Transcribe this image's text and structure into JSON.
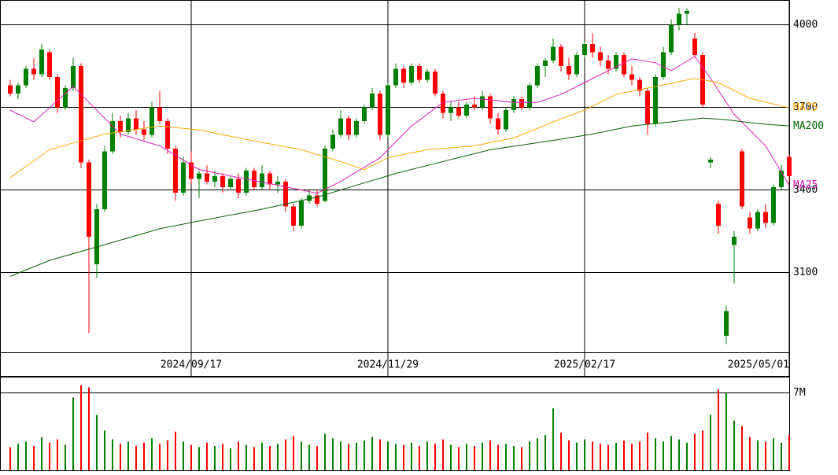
{
  "chart_data": {
    "type": "candlestick",
    "up_color": "#008000",
    "down_color": "#ff0000",
    "categories": [
      null,
      null,
      null,
      null,
      null,
      null,
      null,
      null,
      null,
      null,
      null,
      null,
      null,
      null,
      null,
      null,
      null,
      null,
      null,
      null,
      null,
      null,
      null,
      "2024/09/17",
      null,
      null,
      null,
      null,
      null,
      null,
      null,
      null,
      null,
      null,
      null,
      null,
      null,
      null,
      null,
      null,
      null,
      null,
      null,
      null,
      null,
      null,
      null,
      null,
      "2024/11/29",
      null,
      null,
      null,
      null,
      null,
      null,
      null,
      null,
      null,
      null,
      null,
      null,
      null,
      null,
      null,
      null,
      null,
      null,
      null,
      null,
      null,
      null,
      null,
      null,
      "2025/02/17",
      null,
      null,
      null,
      null,
      null,
      null,
      null,
      null,
      null,
      null,
      null,
      null,
      null,
      null,
      null,
      null,
      null,
      null,
      null,
      null,
      null,
      null,
      null,
      null,
      null,
      "2025/05/01"
    ],
    "ohlc": [
      [
        3780,
        3800,
        3740,
        3750
      ],
      [
        3750,
        3790,
        3730,
        3780
      ],
      [
        3780,
        3850,
        3770,
        3840
      ],
      [
        3840,
        3880,
        3800,
        3820
      ],
      [
        3820,
        3930,
        3810,
        3910
      ],
      [
        3900,
        3910,
        3800,
        3810
      ],
      [
        3810,
        3820,
        3680,
        3700
      ],
      [
        3700,
        3780,
        3690,
        3770
      ],
      [
        3770,
        3880,
        3760,
        3850
      ],
      [
        3850,
        3860,
        3480,
        3500
      ],
      [
        3500,
        3510,
        2880,
        3230
      ],
      [
        3130,
        3350,
        3080,
        3330
      ],
      [
        3330,
        3560,
        3320,
        3540
      ],
      [
        3540,
        3680,
        3530,
        3650
      ],
      [
        3650,
        3670,
        3590,
        3610
      ],
      [
        3610,
        3680,
        3600,
        3660
      ],
      [
        3660,
        3690,
        3600,
        3620
      ],
      [
        3620,
        3650,
        3580,
        3600
      ],
      [
        3600,
        3720,
        3590,
        3700
      ],
      [
        3700,
        3760,
        3640,
        3650
      ],
      [
        3650,
        3660,
        3530,
        3550
      ],
      [
        3550,
        3560,
        3360,
        3390
      ],
      [
        3390,
        3520,
        3380,
        3500
      ],
      [
        3500,
        3540,
        3420,
        3440
      ],
      [
        3440,
        3470,
        3370,
        3460
      ],
      [
        3460,
        3490,
        3420,
        3430
      ],
      [
        3430,
        3470,
        3410,
        3450
      ],
      [
        3450,
        3460,
        3390,
        3410
      ],
      [
        3410,
        3450,
        3400,
        3440
      ],
      [
        3440,
        3460,
        3370,
        3390
      ],
      [
        3390,
        3480,
        3380,
        3470
      ],
      [
        3470,
        3480,
        3400,
        3410
      ],
      [
        3410,
        3490,
        3400,
        3460
      ],
      [
        3460,
        3470,
        3400,
        3420
      ],
      [
        3420,
        3450,
        3390,
        3430
      ],
      [
        3430,
        3440,
        3320,
        3340
      ],
      [
        3340,
        3350,
        3250,
        3270
      ],
      [
        3270,
        3370,
        3260,
        3360
      ],
      [
        3360,
        3400,
        3350,
        3380
      ],
      [
        3380,
        3400,
        3340,
        3350
      ],
      [
        3360,
        3560,
        3355,
        3550
      ],
      [
        3550,
        3620,
        3540,
        3600
      ],
      [
        3600,
        3690,
        3590,
        3660
      ],
      [
        3660,
        3670,
        3580,
        3600
      ],
      [
        3600,
        3660,
        3590,
        3650
      ],
      [
        3650,
        3710,
        3640,
        3700
      ],
      [
        3700,
        3770,
        3690,
        3750
      ],
      [
        3750,
        3760,
        3580,
        3600
      ],
      [
        3600,
        3790,
        3590,
        3780
      ],
      [
        3780,
        3860,
        3770,
        3840
      ],
      [
        3840,
        3850,
        3770,
        3790
      ],
      [
        3790,
        3860,
        3780,
        3850
      ],
      [
        3850,
        3860,
        3790,
        3800
      ],
      [
        3800,
        3840,
        3790,
        3830
      ],
      [
        3830,
        3840,
        3740,
        3750
      ],
      [
        3750,
        3760,
        3660,
        3680
      ],
      [
        3680,
        3720,
        3650,
        3700
      ],
      [
        3700,
        3720,
        3660,
        3670
      ],
      [
        3670,
        3720,
        3660,
        3710
      ],
      [
        3710,
        3740,
        3690,
        3700
      ],
      [
        3700,
        3760,
        3690,
        3740
      ],
      [
        3740,
        3750,
        3640,
        3660
      ],
      [
        3660,
        3680,
        3600,
        3620
      ],
      [
        3620,
        3700,
        3610,
        3690
      ],
      [
        3690,
        3740,
        3680,
        3730
      ],
      [
        3730,
        3740,
        3690,
        3700
      ],
      [
        3700,
        3790,
        3690,
        3780
      ],
      [
        3780,
        3860,
        3770,
        3850
      ],
      [
        3850,
        3880,
        3810,
        3870
      ],
      [
        3870,
        3950,
        3860,
        3920
      ],
      [
        3920,
        3930,
        3830,
        3850
      ],
      [
        3850,
        3880,
        3800,
        3820
      ],
      [
        3820,
        3900,
        3810,
        3890
      ],
      [
        3890,
        3940,
        3880,
        3930
      ],
      [
        3930,
        3970,
        3880,
        3900
      ],
      [
        3900,
        3920,
        3850,
        3870
      ],
      [
        3870,
        3890,
        3820,
        3840
      ],
      [
        3840,
        3900,
        3830,
        3890
      ],
      [
        3890,
        3900,
        3810,
        3820
      ],
      [
        3820,
        3850,
        3780,
        3800
      ],
      [
        3800,
        3810,
        3740,
        3760
      ],
      [
        3760,
        3770,
        3600,
        3640
      ],
      [
        3640,
        3820,
        3630,
        3810
      ],
      [
        3810,
        3920,
        3800,
        3900
      ],
      [
        3900,
        4020,
        3890,
        4000
      ],
      [
        4000,
        4060,
        3980,
        4040
      ],
      [
        4040,
        4060,
        4000,
        4050
      ],
      [
        3950,
        3970,
        3880,
        3890
      ],
      [
        3890,
        3900,
        3700,
        3710
      ],
      [
        3500,
        3520,
        3480,
        3510
      ],
      [
        3350,
        3360,
        3240,
        3270
      ],
      [
        2870,
        2980,
        2840,
        2960
      ],
      [
        3200,
        3250,
        3060,
        3230
      ],
      [
        3540,
        3550,
        3330,
        3340
      ],
      [
        3300,
        3320,
        3240,
        3260
      ],
      [
        3260,
        3330,
        3250,
        3320
      ],
      [
        3320,
        3350,
        3260,
        3280
      ],
      [
        3280,
        3420,
        3270,
        3410
      ],
      [
        3410,
        3490,
        3400,
        3470
      ],
      [
        3520,
        3530,
        3430,
        3450
      ]
    ],
    "volume": [
      2.1,
      2.4,
      2.6,
      2.2,
      3.0,
      2.5,
      2.8,
      2.3,
      6.6,
      7.7,
      7.5,
      5.0,
      3.6,
      2.8,
      2.4,
      2.6,
      2.2,
      2.5,
      2.9,
      2.4,
      2.7,
      3.5,
      2.6,
      2.3,
      2.1,
      2.5,
      2.2,
      2.4,
      2.0,
      2.6,
      2.3,
      2.1,
      2.5,
      2.2,
      2.4,
      2.8,
      3.1,
      2.6,
      2.3,
      2.2,
      3.3,
      2.9,
      2.6,
      2.4,
      2.5,
      2.7,
      3.0,
      2.8,
      2.6,
      2.4,
      2.3,
      2.5,
      2.2,
      2.6,
      2.4,
      2.8,
      2.3,
      2.1,
      2.4,
      2.2,
      2.5,
      2.7,
      2.3,
      2.4,
      2.2,
      2.1,
      2.6,
      2.9,
      3.2,
      5.6,
      3.4,
      2.7,
      2.5,
      2.8,
      2.6,
      2.4,
      2.3,
      2.5,
      2.7,
      2.4,
      2.6,
      3.4,
      2.9,
      2.6,
      3.1,
      2.8,
      2.5,
      3.3,
      3.6,
      5.0,
      7.3,
      7.0,
      4.5,
      4.0,
      3.0,
      2.7,
      2.6,
      2.9,
      2.5,
      3.2
    ],
    "ylim": [
      2810,
      4090
    ],
    "yticks": [
      3100,
      3400,
      3700,
      4000
    ],
    "volume_ylim": [
      0,
      8.4
    ],
    "volume_ticks": [
      {
        "value": 7,
        "label": "7M"
      }
    ],
    "moving_averages": [
      {
        "name": "MA25",
        "color": "#e020c0",
        "x": [
          0,
          3,
          8,
          14,
          19,
          24,
          29,
          34,
          39,
          42,
          47,
          51,
          55,
          59,
          64,
          67,
          70,
          73,
          76,
          79,
          82,
          84,
          87,
          89,
          92,
          96,
          99
        ],
        "values": [
          3690,
          3647,
          3776,
          3603,
          3560,
          3474,
          3445,
          3417,
          3388,
          3431,
          3517,
          3632,
          3718,
          3733,
          3718,
          3718,
          3747,
          3790,
          3833,
          3876,
          3862,
          3833,
          3885,
          3805,
          3675,
          3560,
          3417
        ]
      },
      {
        "name": "MA75",
        "color": "#ffa500",
        "x": [
          0,
          5,
          12,
          19,
          24,
          29,
          37,
          42,
          45,
          48,
          53,
          59,
          64,
          69,
          73,
          77,
          82,
          87,
          90,
          94,
          99
        ],
        "values": [
          3445,
          3546,
          3603,
          3632,
          3618,
          3589,
          3546,
          3503,
          3474,
          3517,
          3546,
          3560,
          3589,
          3647,
          3690,
          3747,
          3776,
          3805,
          3790,
          3733,
          3698
        ]
      },
      {
        "name": "MA200",
        "color": "#006400",
        "x": [
          0,
          5,
          12,
          19,
          24,
          32,
          39,
          44,
          49,
          55,
          61,
          69,
          74,
          79,
          84,
          88,
          91,
          95,
          99
        ],
        "values": [
          3086,
          3144,
          3201,
          3259,
          3287,
          3330,
          3374,
          3417,
          3460,
          3503,
          3546,
          3580,
          3603,
          3632,
          3647,
          3661,
          3655,
          3641,
          3632
        ]
      }
    ]
  }
}
